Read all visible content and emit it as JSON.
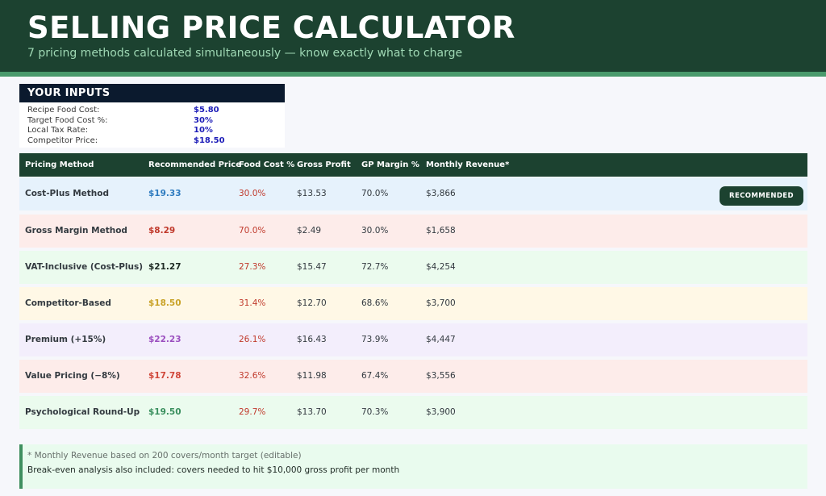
{
  "header": {
    "title": "SELLING PRICE CALCULATOR",
    "subtitle": "7 pricing methods calculated simultaneously — know exactly what to charge"
  },
  "inputs": {
    "heading": "YOUR INPUTS",
    "fields": [
      {
        "label": "Recipe Food Cost:",
        "value": "$5.80"
      },
      {
        "label": "Target Food Cost %:",
        "value": "30%"
      },
      {
        "label": "Local Tax Rate:",
        "value": "10%"
      },
      {
        "label": "Competitor Price:",
        "value": "$18.50"
      }
    ]
  },
  "table": {
    "columns": [
      "Pricing Method",
      "Recommended Price",
      "Food Cost %",
      "Gross Profit",
      "GP Margin %",
      "Monthly Revenue*"
    ],
    "badge_label": "RECOMMENDED",
    "rows": [
      {
        "method": "Cost-Plus Method",
        "price": "$19.33",
        "food_cost": "30.0%",
        "gross_profit": "$13.53",
        "gp_margin": "70.0%",
        "revenue": "$3,866",
        "bg": "#e6f2fc",
        "price_color": "#2e7bbf",
        "recommended": true
      },
      {
        "method": "Gross Margin Method",
        "price": "$8.29",
        "food_cost": "70.0%",
        "gross_profit": "$2.49",
        "gp_margin": "30.0%",
        "revenue": "$1,658",
        "bg": "#fdecea",
        "price_color": "#c0392b",
        "recommended": false
      },
      {
        "method": "VAT-Inclusive (Cost-Plus)",
        "price": "$21.27",
        "food_cost": "27.3%",
        "gross_profit": "$15.47",
        "gp_margin": "72.7%",
        "revenue": "$4,254",
        "bg": "#ebfbee",
        "price_color": "#1e2a24",
        "recommended": false
      },
      {
        "method": "Competitor-Based",
        "price": "$18.50",
        "food_cost": "31.4%",
        "gross_profit": "$12.70",
        "gp_margin": "68.6%",
        "revenue": "$3,700",
        "bg": "#fff8e6",
        "price_color": "#c9a227",
        "recommended": false
      },
      {
        "method": "Premium (+15%)",
        "price": "$22.23",
        "food_cost": "26.1%",
        "gross_profit": "$16.43",
        "gp_margin": "73.9%",
        "revenue": "$4,447",
        "bg": "#f3eefc",
        "price_color": "#9b4fbf",
        "recommended": false
      },
      {
        "method": "Value Pricing (−8%)",
        "price": "$17.78",
        "food_cost": "32.6%",
        "gross_profit": "$11.98",
        "gp_margin": "67.4%",
        "revenue": "$3,556",
        "bg": "#fdecea",
        "price_color": "#d0473a",
        "recommended": false
      },
      {
        "method": "Psychological Round-Up",
        "price": "$19.50",
        "food_cost": "29.7%",
        "gross_profit": "$13.70",
        "gp_margin": "70.3%",
        "revenue": "$3,900",
        "bg": "#ebfbee",
        "price_color": "#3a8f5e",
        "recommended": false
      }
    ]
  },
  "note": {
    "line1": "* Monthly Revenue based on 200 covers/month target (editable)",
    "line2": "Break-even analysis also included: covers needed to hit $10,000 gross profit per month"
  },
  "colors": {
    "header_bg": "#1c4230",
    "accent_green": "#4a9a6c",
    "inputs_head_bg": "#0b1a2e",
    "input_value": "#1d1db8",
    "food_cost_red": "#c0392b"
  }
}
